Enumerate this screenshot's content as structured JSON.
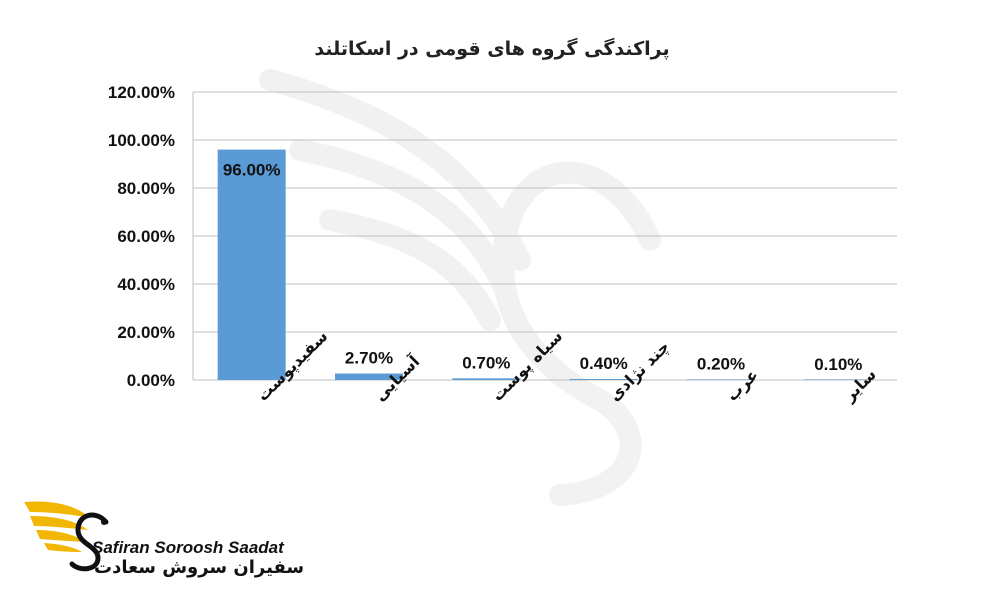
{
  "chart_data": {
    "type": "bar",
    "title": "پراکندگی گروه های قومی در اسکاتلند",
    "categories": [
      "سفیدپوست",
      "آسیایی",
      "سیاه پوست",
      "چند نژادی",
      "عرب",
      "سایر"
    ],
    "values": [
      96.0,
      2.7,
      0.7,
      0.4,
      0.2,
      0.1
    ],
    "data_labels": [
      "96.00%",
      "2.70%",
      "0.70%",
      "0.40%",
      "0.20%",
      "0.10%"
    ],
    "ylim": [
      0,
      120
    ],
    "yticks": [
      "0.00%",
      "20.00%",
      "40.00%",
      "60.00%",
      "80.00%",
      "100.00%",
      "120.00%"
    ],
    "ytick_values": [
      0,
      20,
      40,
      60,
      80,
      100,
      120
    ],
    "grid": true,
    "legend": false,
    "bar_color": "#5b9bd5",
    "grid_color": "#bfbfbf"
  },
  "logo": {
    "text_en": "Safiran Soroosh Saadat",
    "text_fa": "سفیران سروش سعادت",
    "wing_color": "#f2b705",
    "mark_color": "#111111"
  }
}
